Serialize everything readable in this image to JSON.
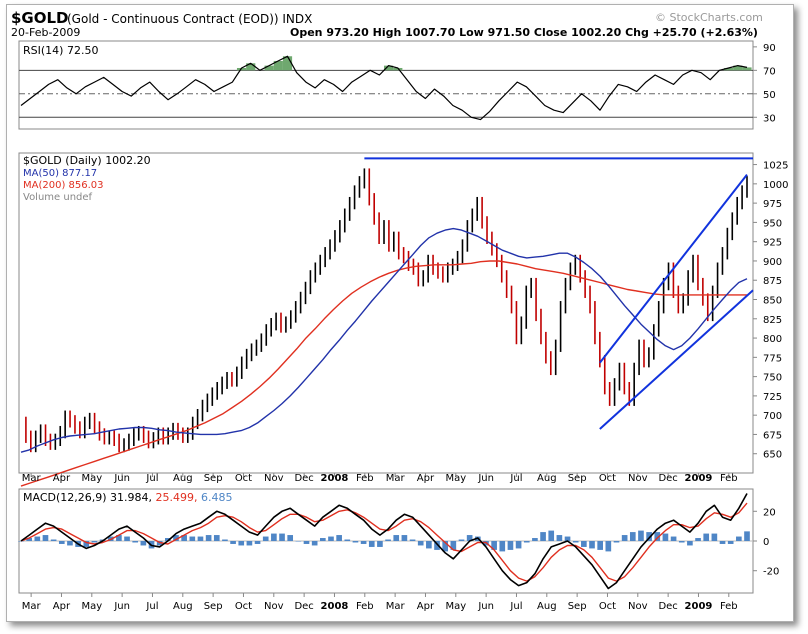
{
  "header": {
    "symbol": "$GOLD",
    "title": "(Gold - Continuous Contract (EOD)) INDX",
    "date": "20-Feb-2009",
    "ohlc": "Open 973.20  High 1007.70  Low 971.50  Close 1002.20  Chg +25.70 (+2.63%)",
    "watermark": "© StockCharts.com"
  },
  "legend": {
    "rsi": "RSI(14) 72.50",
    "price": "$GOLD (Daily) 1002.20",
    "ma50": "MA(50) 877.17",
    "ma200": "MA(200) 856.03",
    "volume": "Volume undef"
  },
  "macd_legend": {
    "name": "MACD(12,26,9) 31.984,",
    "signal": "25.499,",
    "hist": "6.485"
  },
  "x_labels": [
    "Mar",
    "Apr",
    "May",
    "Jun",
    "Jul",
    "Aug",
    "Sep",
    "Oct",
    "Nov",
    "Dec",
    "2008",
    "Feb",
    "Mar",
    "Apr",
    "May",
    "Jun",
    "Jul",
    "Aug",
    "Sep",
    "Oct",
    "Nov",
    "Dec",
    "2009",
    "Feb"
  ],
  "colors": {
    "price": "#000000",
    "ma50": "#2233aa",
    "ma200": "#e03020",
    "trendline": "#1133dd",
    "macd_signal": "#e03020",
    "macd_hist": "#4f86c6",
    "rsi_fill": "#6fa86f"
  },
  "chart_data": [
    {
      "type": "line",
      "title": "RSI(14)",
      "ylim": [
        20,
        95
      ],
      "yticks": [
        30,
        50,
        70,
        90
      ],
      "overbought": 70,
      "oversold": 30,
      "midline": 50,
      "values": [
        40,
        46,
        52,
        58,
        62,
        55,
        50,
        56,
        60,
        64,
        58,
        52,
        48,
        55,
        60,
        52,
        45,
        50,
        56,
        62,
        58,
        52,
        56,
        60,
        72,
        76,
        70,
        74,
        78,
        82,
        68,
        60,
        55,
        62,
        58,
        52,
        60,
        65,
        70,
        66,
        74,
        72,
        62,
        52,
        46,
        54,
        48,
        40,
        36,
        30,
        28,
        35,
        44,
        52,
        60,
        56,
        48,
        40,
        36,
        34,
        42,
        50,
        44,
        36,
        48,
        58,
        56,
        52,
        60,
        66,
        62,
        58,
        66,
        70,
        68,
        62,
        70,
        72,
        74,
        72.5
      ]
    },
    {
      "type": "line",
      "title": "$GOLD (Daily)",
      "ylim": [
        625,
        1040
      ],
      "yticks": [
        650,
        675,
        700,
        725,
        750,
        775,
        800,
        825,
        850,
        875,
        900,
        925,
        950,
        975,
        1000,
        1025
      ],
      "series": [
        {
          "name": "$GOLD",
          "values": [
            690,
            672,
            660,
            672,
            680,
            668,
            663,
            668,
            678,
            698,
            692,
            684,
            678,
            690,
            695,
            684,
            675,
            670,
            672,
            668,
            660,
            662,
            668,
            675,
            678,
            672,
            665,
            670,
            676,
            670,
            676,
            682,
            676,
            672,
            676,
            690,
            700,
            712,
            720,
            728,
            735,
            742,
            748,
            745,
            755,
            768,
            778,
            785,
            790,
            798,
            810,
            818,
            825,
            815,
            820,
            828,
            840,
            852,
            865,
            880,
            890,
            900,
            910,
            920,
            932,
            945,
            960,
            975,
            990,
            1002,
            1012,
            980,
            955,
            930,
            945,
            920,
            930,
            910,
            905,
            895,
            890,
            875,
            880,
            900,
            890,
            885,
            880,
            890,
            895,
            905,
            920,
            945,
            960,
            975,
            950,
            930,
            915,
            900,
            880,
            860,
            840,
            800,
            820,
            860,
            870,
            830,
            800,
            775,
            760,
            790,
            840,
            870,
            890,
            900,
            880,
            860,
            840,
            800,
            770,
            735,
            720,
            740,
            760,
            735,
            720,
            760,
            790,
            770,
            780,
            810,
            840,
            870,
            890,
            860,
            840,
            850,
            880,
            900,
            870,
            850,
            830,
            860,
            890,
            910,
            935,
            955,
            975,
            990,
            1002
          ]
        },
        {
          "name": "MA(50)",
          "values": [
            652,
            655,
            660,
            664,
            668,
            671,
            673,
            674,
            675,
            676,
            678,
            680,
            682,
            683,
            684,
            684,
            683,
            681,
            680,
            678,
            677,
            676,
            675,
            675,
            675,
            676,
            678,
            680,
            684,
            690,
            698,
            706,
            715,
            725,
            736,
            748,
            760,
            772,
            785,
            797,
            810,
            822,
            835,
            848,
            860,
            872,
            884,
            896,
            908,
            920,
            930,
            936,
            940,
            942,
            940,
            936,
            932,
            926,
            920,
            914,
            910,
            906,
            904,
            905,
            906,
            908,
            910,
            910,
            905,
            898,
            890,
            880,
            868,
            855,
            842,
            830,
            818,
            808,
            798,
            790,
            785,
            790,
            800,
            812,
            825,
            838,
            850,
            862,
            872,
            877
          ]
        },
        {
          "name": "MA(200)",
          "values": [
            608,
            612,
            616,
            620,
            624,
            628,
            632,
            636,
            640,
            644,
            648,
            652,
            656,
            660,
            664,
            668,
            672,
            676,
            680,
            685,
            690,
            696,
            702,
            710,
            718,
            727,
            737,
            748,
            760,
            773,
            786,
            800,
            812,
            825,
            837,
            848,
            858,
            866,
            873,
            879,
            884,
            888,
            891,
            893,
            894,
            895,
            895,
            895,
            896,
            897,
            899,
            900,
            900,
            898,
            896,
            893,
            890,
            888,
            886,
            884,
            881,
            878,
            875,
            872,
            869,
            866,
            863,
            861,
            859,
            857,
            856,
            856,
            856,
            856,
            856,
            856,
            856,
            856,
            856,
            856
          ]
        }
      ],
      "hline": 1033,
      "channel_upper": [
        768,
        1012
      ],
      "channel_lower": [
        682,
        862
      ]
    },
    {
      "type": "line",
      "title": "MACD(12,26,9)",
      "ylim": [
        -35,
        35
      ],
      "yticks": [
        -20,
        0,
        20
      ],
      "series": [
        {
          "name": "MACD",
          "values": [
            0,
            4,
            8,
            12,
            10,
            6,
            2,
            -2,
            -5,
            -3,
            0,
            4,
            8,
            10,
            6,
            2,
            -3,
            -4,
            0,
            5,
            8,
            10,
            12,
            16,
            20,
            18,
            14,
            10,
            6,
            4,
            10,
            16,
            20,
            22,
            18,
            14,
            10,
            16,
            20,
            24,
            22,
            18,
            14,
            8,
            4,
            8,
            14,
            18,
            16,
            10,
            4,
            -2,
            -8,
            -12,
            -6,
            0,
            2,
            -4,
            -12,
            -20,
            -26,
            -30,
            -28,
            -22,
            -12,
            -4,
            -2,
            0,
            -4,
            -10,
            -16,
            -24,
            -32,
            -28,
            -20,
            -12,
            -4,
            2,
            8,
            12,
            14,
            10,
            6,
            12,
            20,
            24,
            16,
            14,
            22,
            31.984
          ]
        },
        {
          "name": "Signal",
          "values": [
            0,
            2,
            5,
            8,
            9,
            8,
            5,
            2,
            -1,
            -2,
            -1,
            1,
            4,
            7,
            7,
            5,
            2,
            -1,
            -2,
            1,
            4,
            7,
            9,
            12,
            16,
            17,
            16,
            13,
            9,
            6,
            7,
            11,
            15,
            18,
            18,
            16,
            13,
            14,
            17,
            20,
            21,
            19,
            16,
            12,
            8,
            7,
            10,
            14,
            15,
            13,
            9,
            4,
            -1,
            -6,
            -7,
            -4,
            -1,
            -1,
            -6,
            -13,
            -20,
            -25,
            -27,
            -24,
            -18,
            -11,
            -6,
            -3,
            -3,
            -6,
            -11,
            -18,
            -25,
            -27,
            -24,
            -18,
            -11,
            -4,
            2,
            7,
            11,
            11,
            9,
            10,
            15,
            19,
            18,
            16,
            19,
            25.499
          ]
        }
      ],
      "histogram": [
        0,
        2,
        3,
        4,
        1,
        -2,
        -3,
        -4,
        -4,
        -1,
        1,
        3,
        4,
        3,
        -1,
        -3,
        -5,
        -3,
        2,
        4,
        4,
        3,
        3,
        4,
        4,
        1,
        -2,
        -3,
        -3,
        -2,
        3,
        5,
        5,
        4,
        0,
        -2,
        -3,
        2,
        3,
        4,
        1,
        -1,
        -2,
        -4,
        -4,
        1,
        4,
        4,
        1,
        -3,
        -5,
        -6,
        -7,
        -6,
        1,
        4,
        3,
        -3,
        -6,
        -7,
        -6,
        -5,
        -1,
        2,
        6,
        7,
        4,
        3,
        -1,
        -4,
        -5,
        -6,
        -7,
        -1,
        4,
        6,
        7,
        6,
        6,
        5,
        3,
        -1,
        -3,
        2,
        5,
        5,
        -2,
        -2,
        3,
        6.485
      ]
    }
  ]
}
